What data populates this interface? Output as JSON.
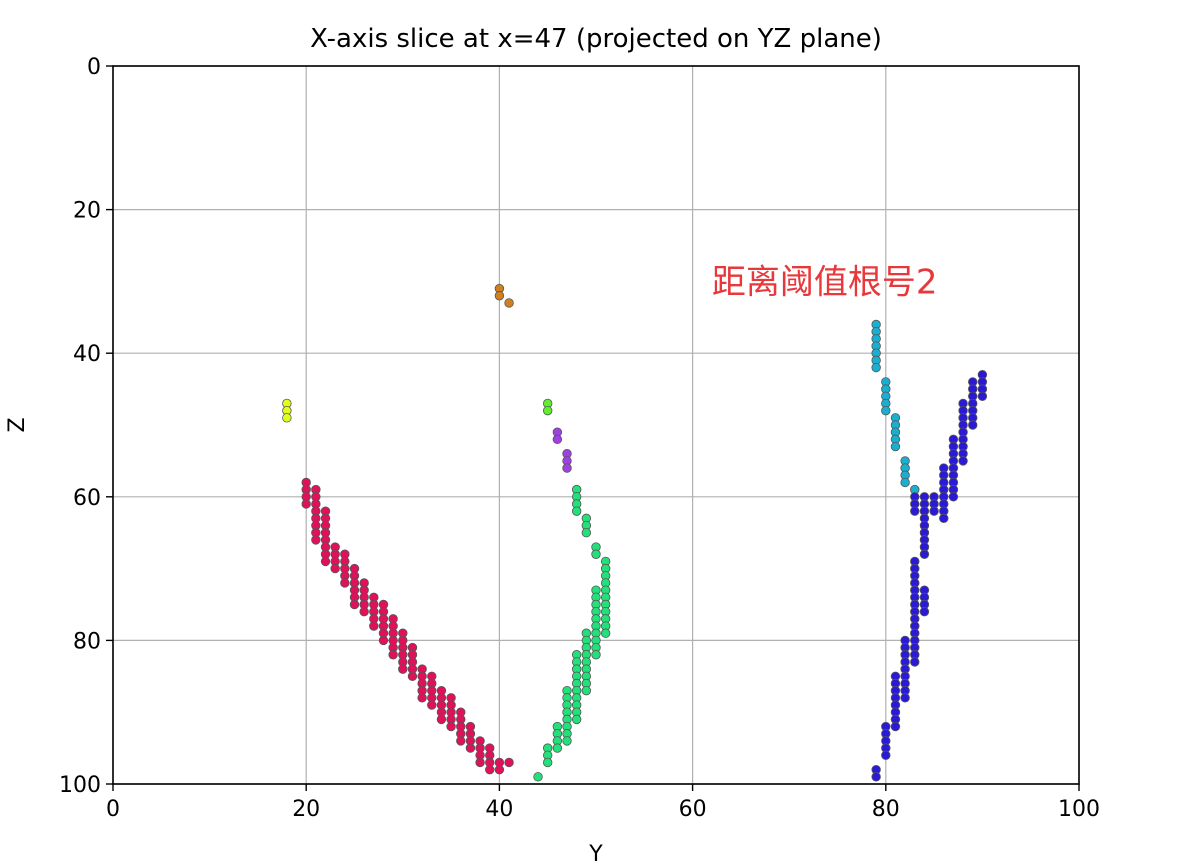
{
  "chart_data": {
    "type": "scatter",
    "title": "X-axis slice at x=47 (projected on YZ plane)",
    "xlabel": "Y",
    "ylabel": "Z",
    "xlim": [
      0,
      100
    ],
    "ylim": [
      100,
      0
    ],
    "y_axis_inverted": true,
    "grid": true,
    "xticks": [
      "0",
      "20",
      "40",
      "60",
      "80",
      "100"
    ],
    "yticks": [
      "0",
      "20",
      "40",
      "60",
      "80",
      "100"
    ],
    "annotation": {
      "text": "距离阈值根号2",
      "color": "#e8383b",
      "x": 62,
      "y": 30
    },
    "series": [
      {
        "color": "#e0ff1a",
        "points": [
          [
            18,
            47
          ],
          [
            18,
            48
          ],
          [
            18,
            49
          ]
        ]
      },
      {
        "color": "#d08020",
        "points": [
          [
            40,
            31
          ],
          [
            40,
            32
          ],
          [
            41,
            33
          ]
        ]
      },
      {
        "color": "#e0115a",
        "points": [
          [
            20,
            58
          ],
          [
            20,
            59
          ],
          [
            20,
            60
          ],
          [
            20,
            61
          ],
          [
            21,
            59
          ],
          [
            21,
            60
          ],
          [
            21,
            61
          ],
          [
            21,
            62
          ],
          [
            21,
            63
          ],
          [
            21,
            64
          ],
          [
            21,
            65
          ],
          [
            21,
            66
          ],
          [
            22,
            62
          ],
          [
            22,
            63
          ],
          [
            22,
            64
          ],
          [
            22,
            65
          ],
          [
            22,
            66
          ],
          [
            22,
            67
          ],
          [
            22,
            68
          ],
          [
            22,
            69
          ],
          [
            23,
            67
          ],
          [
            23,
            68
          ],
          [
            23,
            69
          ],
          [
            23,
            70
          ],
          [
            24,
            68
          ],
          [
            24,
            69
          ],
          [
            24,
            70
          ],
          [
            24,
            71
          ],
          [
            24,
            72
          ],
          [
            25,
            70
          ],
          [
            25,
            71
          ],
          [
            25,
            72
          ],
          [
            25,
            73
          ],
          [
            25,
            74
          ],
          [
            25,
            75
          ],
          [
            26,
            72
          ],
          [
            26,
            73
          ],
          [
            26,
            74
          ],
          [
            26,
            75
          ],
          [
            26,
            76
          ],
          [
            27,
            74
          ],
          [
            27,
            75
          ],
          [
            27,
            76
          ],
          [
            27,
            77
          ],
          [
            27,
            78
          ],
          [
            28,
            75
          ],
          [
            28,
            76
          ],
          [
            28,
            77
          ],
          [
            28,
            78
          ],
          [
            28,
            79
          ],
          [
            28,
            80
          ],
          [
            29,
            77
          ],
          [
            29,
            78
          ],
          [
            29,
            79
          ],
          [
            29,
            80
          ],
          [
            29,
            81
          ],
          [
            29,
            82
          ],
          [
            30,
            79
          ],
          [
            30,
            80
          ],
          [
            30,
            81
          ],
          [
            30,
            82
          ],
          [
            30,
            83
          ],
          [
            30,
            84
          ],
          [
            31,
            81
          ],
          [
            31,
            82
          ],
          [
            31,
            83
          ],
          [
            31,
            84
          ],
          [
            31,
            85
          ],
          [
            32,
            84
          ],
          [
            32,
            85
          ],
          [
            32,
            86
          ],
          [
            32,
            87
          ],
          [
            32,
            88
          ],
          [
            33,
            85
          ],
          [
            33,
            86
          ],
          [
            33,
            87
          ],
          [
            33,
            88
          ],
          [
            33,
            89
          ],
          [
            34,
            87
          ],
          [
            34,
            88
          ],
          [
            34,
            89
          ],
          [
            34,
            90
          ],
          [
            34,
            91
          ],
          [
            35,
            88
          ],
          [
            35,
            89
          ],
          [
            35,
            90
          ],
          [
            35,
            91
          ],
          [
            35,
            92
          ],
          [
            36,
            90
          ],
          [
            36,
            91
          ],
          [
            36,
            92
          ],
          [
            36,
            93
          ],
          [
            36,
            94
          ],
          [
            37,
            92
          ],
          [
            37,
            93
          ],
          [
            37,
            94
          ],
          [
            37,
            95
          ],
          [
            38,
            94
          ],
          [
            38,
            95
          ],
          [
            38,
            96
          ],
          [
            38,
            97
          ],
          [
            39,
            95
          ],
          [
            39,
            96
          ],
          [
            39,
            97
          ],
          [
            39,
            98
          ],
          [
            40,
            97
          ],
          [
            40,
            98
          ],
          [
            41,
            97
          ]
        ]
      },
      {
        "color": "#a040e0",
        "points": [
          [
            46,
            51
          ],
          [
            46,
            52
          ],
          [
            47,
            54
          ],
          [
            47,
            55
          ],
          [
            47,
            56
          ]
        ]
      },
      {
        "color": "#60ee30",
        "points": [
          [
            45,
            47
          ],
          [
            45,
            48
          ]
        ]
      },
      {
        "color": "#22e07a",
        "points": [
          [
            48,
            59
          ],
          [
            48,
            60
          ],
          [
            48,
            61
          ],
          [
            48,
            62
          ],
          [
            49,
            63
          ],
          [
            49,
            64
          ],
          [
            49,
            65
          ],
          [
            50,
            67
          ],
          [
            50,
            68
          ],
          [
            51,
            69
          ],
          [
            51,
            70
          ],
          [
            51,
            71
          ],
          [
            51,
            72
          ],
          [
            51,
            73
          ],
          [
            51,
            74
          ],
          [
            51,
            75
          ],
          [
            51,
            76
          ],
          [
            51,
            77
          ],
          [
            51,
            78
          ],
          [
            51,
            79
          ],
          [
            50,
            73
          ],
          [
            50,
            74
          ],
          [
            50,
            75
          ],
          [
            50,
            76
          ],
          [
            50,
            77
          ],
          [
            50,
            78
          ],
          [
            50,
            79
          ],
          [
            50,
            80
          ],
          [
            50,
            81
          ],
          [
            50,
            82
          ],
          [
            49,
            79
          ],
          [
            49,
            80
          ],
          [
            49,
            81
          ],
          [
            49,
            82
          ],
          [
            49,
            83
          ],
          [
            49,
            84
          ],
          [
            49,
            85
          ],
          [
            49,
            86
          ],
          [
            49,
            87
          ],
          [
            48,
            82
          ],
          [
            48,
            83
          ],
          [
            48,
            84
          ],
          [
            48,
            85
          ],
          [
            48,
            86
          ],
          [
            48,
            87
          ],
          [
            48,
            88
          ],
          [
            48,
            89
          ],
          [
            48,
            90
          ],
          [
            48,
            91
          ],
          [
            47,
            87
          ],
          [
            47,
            88
          ],
          [
            47,
            89
          ],
          [
            47,
            90
          ],
          [
            47,
            91
          ],
          [
            47,
            92
          ],
          [
            47,
            93
          ],
          [
            47,
            94
          ],
          [
            46,
            92
          ],
          [
            46,
            93
          ],
          [
            46,
            94
          ],
          [
            46,
            95
          ],
          [
            45,
            95
          ],
          [
            45,
            96
          ],
          [
            45,
            97
          ],
          [
            44,
            99
          ]
        ]
      },
      {
        "color": "#1aaed0",
        "points": [
          [
            79,
            36
          ],
          [
            79,
            37
          ],
          [
            79,
            38
          ],
          [
            79,
            39
          ],
          [
            79,
            40
          ],
          [
            79,
            41
          ],
          [
            79,
            42
          ],
          [
            80,
            44
          ],
          [
            80,
            45
          ],
          [
            80,
            46
          ],
          [
            80,
            47
          ],
          [
            80,
            48
          ],
          [
            81,
            49
          ],
          [
            81,
            50
          ],
          [
            81,
            51
          ],
          [
            81,
            52
          ],
          [
            81,
            53
          ],
          [
            82,
            55
          ],
          [
            82,
            56
          ],
          [
            82,
            57
          ],
          [
            82,
            58
          ],
          [
            83,
            59
          ]
        ]
      },
      {
        "color": "#2a1ad8",
        "points": [
          [
            83,
            60
          ],
          [
            83,
            61
          ],
          [
            83,
            62
          ],
          [
            83,
            69
          ],
          [
            83,
            70
          ],
          [
            83,
            71
          ],
          [
            83,
            72
          ],
          [
            83,
            73
          ],
          [
            83,
            74
          ],
          [
            83,
            75
          ],
          [
            83,
            76
          ],
          [
            83,
            77
          ],
          [
            83,
            78
          ],
          [
            83,
            79
          ],
          [
            83,
            80
          ],
          [
            83,
            81
          ],
          [
            83,
            82
          ],
          [
            83,
            83
          ],
          [
            84,
            60
          ],
          [
            84,
            61
          ],
          [
            84,
            62
          ],
          [
            84,
            63
          ],
          [
            84,
            64
          ],
          [
            84,
            65
          ],
          [
            84,
            66
          ],
          [
            84,
            67
          ],
          [
            84,
            68
          ],
          [
            84,
            73
          ],
          [
            84,
            74
          ],
          [
            84,
            75
          ],
          [
            84,
            76
          ],
          [
            85,
            60
          ],
          [
            85,
            61
          ],
          [
            85,
            62
          ],
          [
            86,
            56
          ],
          [
            86,
            57
          ],
          [
            86,
            58
          ],
          [
            86,
            59
          ],
          [
            86,
            60
          ],
          [
            86,
            61
          ],
          [
            86,
            62
          ],
          [
            86,
            63
          ],
          [
            87,
            52
          ],
          [
            87,
            53
          ],
          [
            87,
            54
          ],
          [
            87,
            55
          ],
          [
            87,
            56
          ],
          [
            87,
            57
          ],
          [
            87,
            58
          ],
          [
            87,
            59
          ],
          [
            87,
            60
          ],
          [
            88,
            47
          ],
          [
            88,
            48
          ],
          [
            88,
            49
          ],
          [
            88,
            50
          ],
          [
            88,
            51
          ],
          [
            88,
            52
          ],
          [
            88,
            53
          ],
          [
            88,
            54
          ],
          [
            88,
            55
          ],
          [
            89,
            44
          ],
          [
            89,
            45
          ],
          [
            89,
            46
          ],
          [
            89,
            47
          ],
          [
            89,
            48
          ],
          [
            89,
            49
          ],
          [
            89,
            50
          ],
          [
            90,
            43
          ],
          [
            90,
            44
          ],
          [
            90,
            45
          ],
          [
            90,
            46
          ],
          [
            82,
            80
          ],
          [
            82,
            81
          ],
          [
            82,
            82
          ],
          [
            82,
            83
          ],
          [
            82,
            84
          ],
          [
            81,
            85
          ],
          [
            81,
            86
          ],
          [
            81,
            87
          ],
          [
            81,
            88
          ],
          [
            81,
            89
          ],
          [
            81,
            90
          ],
          [
            81,
            91
          ],
          [
            81,
            92
          ],
          [
            82,
            85
          ],
          [
            82,
            86
          ],
          [
            82,
            87
          ],
          [
            82,
            88
          ],
          [
            80,
            92
          ],
          [
            80,
            93
          ],
          [
            80,
            94
          ],
          [
            80,
            95
          ],
          [
            80,
            96
          ],
          [
            79,
            98
          ],
          [
            79,
            99
          ]
        ]
      }
    ]
  }
}
